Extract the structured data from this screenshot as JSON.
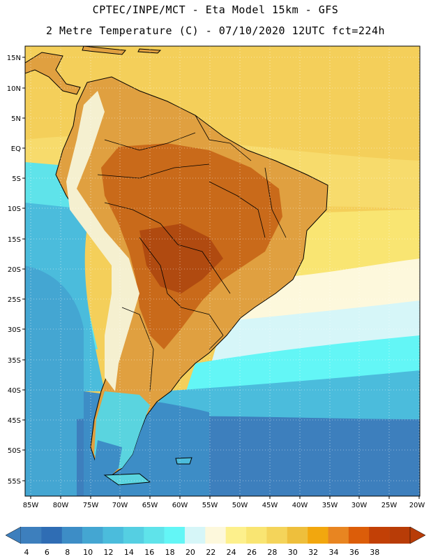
{
  "header": {
    "title_line1": "CPTEC/INPE/MCT -  Eta Model 15km - GFS",
    "title_line2": "2 Metre Temperature (C) - 07/10/2020 12UTC fct=224h"
  },
  "axes": {
    "lat_labels": [
      "15N",
      "10N",
      "5N",
      "EQ",
      "5S",
      "10S",
      "15S",
      "20S",
      "25S",
      "30S",
      "35S",
      "40S",
      "45S",
      "50S",
      "55S"
    ],
    "lat_values": [
      15,
      10,
      5,
      0,
      -5,
      -10,
      -15,
      -20,
      -25,
      -30,
      -35,
      -40,
      -45,
      -50,
      -55
    ],
    "lon_labels": [
      "85W",
      "80W",
      "75W",
      "70W",
      "65W",
      "60W",
      "55W",
      "50W",
      "45W",
      "40W",
      "35W",
      "30W",
      "25W",
      "20W"
    ],
    "lon_values": [
      -85,
      -80,
      -75,
      -70,
      -65,
      -60,
      -55,
      -50,
      -45,
      -40,
      -35,
      -30,
      -25,
      -20
    ],
    "lat_range": [
      -57,
      16.5
    ],
    "lon_range": [
      -86,
      -20
    ]
  },
  "colorbar": {
    "labels": [
      "4",
      "6",
      "8",
      "10",
      "12",
      "14",
      "16",
      "18",
      "20",
      "22",
      "24",
      "26",
      "28",
      "30",
      "32",
      "34",
      "36",
      "38"
    ],
    "colors": [
      "#3d7fbd",
      "#2f6db4",
      "#3d8dc6",
      "#44a6d2",
      "#4bbcdc",
      "#55cfe2",
      "#5fe3ea",
      "#63f6f6",
      "#d6f6f8",
      "#fdf8dc",
      "#fdf08c",
      "#f9e572",
      "#f4d45a",
      "#eebf3c",
      "#f2a70e",
      "#e88521",
      "#dc5d09",
      "#c24006",
      "#b83c07"
    ],
    "under_color": "#3d7fbd",
    "over_color": "#b83c07"
  },
  "map": {
    "ocean_color": "#3fa9d4",
    "land_hot_color": "#c96a1a",
    "land_warm_color": "#e0a040",
    "andes_color": "#f5f0d0",
    "patagonia_color": "#5ad4df"
  }
}
